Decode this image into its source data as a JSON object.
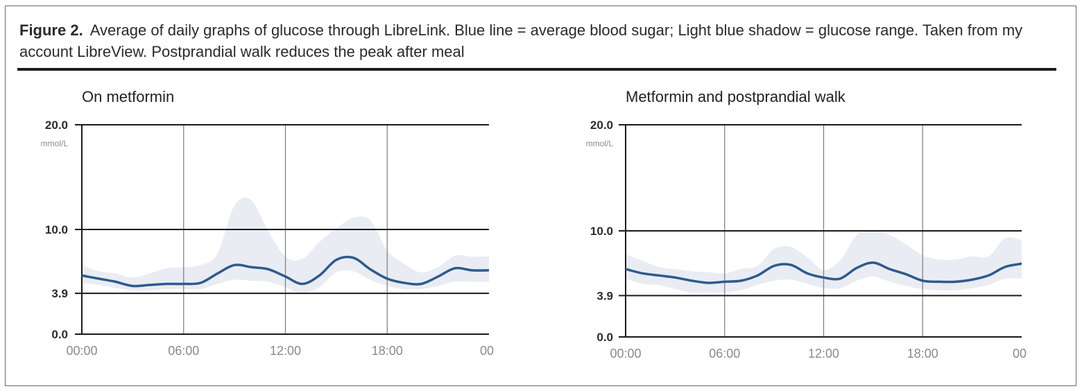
{
  "caption": {
    "label": "Figure 2.",
    "text": "Average of daily graphs of glucose through LibreLink. Blue line = average blood sugar; Light blue shadow = glucose range. Taken from my account LibreView. Postprandial walk reduces the peak after meal"
  },
  "colors": {
    "line": "#2d5a8c",
    "range": "#e9ecf3",
    "axis": "#1a1a1a",
    "grid": "#7a7a7a"
  },
  "chart_data": [
    {
      "type": "line",
      "title": "On metformin",
      "ylabel": "mmol/L",
      "ylim": [
        0,
        20
      ],
      "y_ticks": [
        {
          "value": 0.0,
          "label": "0.0"
        },
        {
          "value": 3.9,
          "label": "3.9"
        },
        {
          "value": 10.0,
          "label": "10.0"
        },
        {
          "value": 20.0,
          "label": "20.0"
        }
      ],
      "xlim": [
        0,
        24
      ],
      "x_ticks": [
        {
          "value": 0,
          "label": "00:00"
        },
        {
          "value": 6,
          "label": "06:00"
        },
        {
          "value": 12,
          "label": "12:00"
        },
        {
          "value": 18,
          "label": "18:00"
        },
        {
          "value": 24,
          "label": "00"
        }
      ],
      "series": [
        {
          "kind": "average",
          "x": [
            0,
            1,
            2,
            3,
            4,
            5,
            6,
            7,
            8,
            9,
            10,
            11,
            12,
            13,
            14,
            15,
            16,
            17,
            18,
            19,
            20,
            21,
            22,
            23,
            24
          ],
          "y": [
            5.6,
            5.3,
            5.0,
            4.6,
            4.7,
            4.8,
            4.8,
            4.9,
            5.8,
            6.6,
            6.4,
            6.2,
            5.5,
            4.8,
            5.6,
            7.1,
            7.3,
            6.2,
            5.3,
            4.9,
            4.8,
            5.5,
            6.3,
            6.1,
            6.1
          ]
        },
        {
          "kind": "range",
          "x": [
            0,
            1,
            2,
            3,
            4,
            5,
            6,
            7,
            8,
            9,
            10,
            11,
            12,
            13,
            14,
            15,
            16,
            17,
            18,
            19,
            20,
            21,
            22,
            23,
            24
          ],
          "low": [
            4.9,
            4.7,
            4.4,
            4.2,
            4.2,
            4.3,
            4.3,
            4.3,
            4.8,
            5.2,
            5.1,
            5.0,
            4.5,
            3.9,
            4.5,
            5.9,
            6.0,
            5.2,
            4.6,
            4.3,
            4.3,
            4.6,
            5.0,
            5.0,
            5.0
          ],
          "high": [
            6.6,
            6.0,
            5.8,
            5.4,
            5.8,
            6.3,
            6.4,
            6.6,
            7.7,
            12.3,
            12.8,
            9.8,
            7.4,
            7.2,
            8.8,
            10.1,
            11.1,
            10.9,
            8.0,
            6.7,
            5.9,
            6.4,
            7.5,
            7.4,
            7.4
          ]
        }
      ]
    },
    {
      "type": "line",
      "title": "Metformin and postprandial walk",
      "ylabel": "mmol/L",
      "ylim": [
        0,
        20
      ],
      "y_ticks": [
        {
          "value": 0.0,
          "label": "0.0"
        },
        {
          "value": 3.9,
          "label": "3.9"
        },
        {
          "value": 10.0,
          "label": "10.0"
        },
        {
          "value": 20.0,
          "label": "20.0"
        }
      ],
      "xlim": [
        0,
        24
      ],
      "x_ticks": [
        {
          "value": 0,
          "label": "00:00"
        },
        {
          "value": 6,
          "label": "06:00"
        },
        {
          "value": 12,
          "label": "12:00"
        },
        {
          "value": 18,
          "label": "18:00"
        },
        {
          "value": 24,
          "label": "00"
        }
      ],
      "series": [
        {
          "kind": "average",
          "x": [
            0,
            1,
            2,
            3,
            4,
            5,
            6,
            7,
            8,
            9,
            10,
            11,
            12,
            13,
            14,
            15,
            16,
            17,
            18,
            19,
            20,
            21,
            22,
            23,
            24
          ],
          "y": [
            6.4,
            6.0,
            5.8,
            5.6,
            5.3,
            5.1,
            5.2,
            5.3,
            5.8,
            6.7,
            6.8,
            6.0,
            5.6,
            5.5,
            6.5,
            7.0,
            6.4,
            5.9,
            5.3,
            5.2,
            5.2,
            5.4,
            5.8,
            6.6,
            6.9
          ]
        },
        {
          "kind": "range",
          "x": [
            0,
            1,
            2,
            3,
            4,
            5,
            6,
            7,
            8,
            9,
            10,
            11,
            12,
            13,
            14,
            15,
            16,
            17,
            18,
            19,
            20,
            21,
            22,
            23,
            24
          ],
          "low": [
            5.5,
            5.0,
            4.9,
            4.5,
            4.2,
            4.2,
            4.2,
            4.4,
            4.9,
            5.3,
            5.4,
            5.0,
            4.6,
            4.6,
            5.3,
            5.7,
            5.2,
            4.8,
            4.5,
            4.4,
            4.4,
            4.6,
            4.9,
            5.5,
            5.5
          ],
          "high": [
            7.8,
            7.2,
            6.6,
            6.4,
            6.2,
            6.1,
            6.0,
            6.4,
            6.7,
            8.3,
            8.5,
            7.5,
            6.3,
            7.2,
            9.6,
            10.0,
            9.6,
            8.7,
            7.7,
            7.3,
            7.3,
            7.6,
            7.6,
            9.3,
            9.1
          ]
        }
      ]
    }
  ]
}
